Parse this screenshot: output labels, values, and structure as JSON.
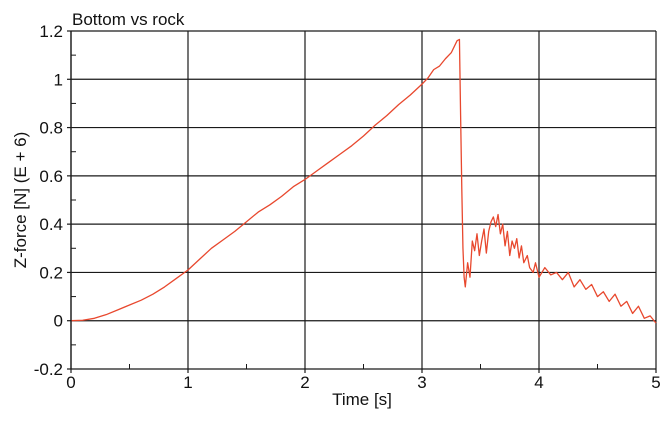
{
  "chart_data": {
    "type": "line",
    "title": "Bottom vs rock",
    "xlabel": "Time [s]",
    "ylabel": "Z-force [N] (E + 6)",
    "xlim": [
      0,
      5
    ],
    "ylim": [
      -0.2,
      1.2
    ],
    "grid": true,
    "x_major_ticks": [
      0,
      1,
      2,
      3,
      4,
      5
    ],
    "x_tick_labels": [
      "0",
      "1",
      "2",
      "3",
      "4",
      "5"
    ],
    "y_major_ticks": [
      -0.2,
      0,
      0.2,
      0.4,
      0.6,
      0.8,
      1,
      1.2
    ],
    "y_tick_labels": [
      "-0.2",
      "0",
      "0.2",
      "0.4",
      "0.6",
      "0.8",
      "1",
      "1.2"
    ],
    "colors": {
      "series": "#e8482e",
      "grid": "#1a1a1a",
      "axis": "#1a1a1a"
    },
    "series": [
      {
        "points": [
          [
            0.0,
            0.0
          ],
          [
            0.1,
            0.002
          ],
          [
            0.2,
            0.01
          ],
          [
            0.3,
            0.025
          ],
          [
            0.4,
            0.045
          ],
          [
            0.5,
            0.065
          ],
          [
            0.6,
            0.085
          ],
          [
            0.7,
            0.11
          ],
          [
            0.8,
            0.14
          ],
          [
            0.9,
            0.175
          ],
          [
            1.0,
            0.21
          ],
          [
            1.1,
            0.255
          ],
          [
            1.2,
            0.3
          ],
          [
            1.3,
            0.335
          ],
          [
            1.4,
            0.37
          ],
          [
            1.5,
            0.41
          ],
          [
            1.6,
            0.45
          ],
          [
            1.7,
            0.48
          ],
          [
            1.8,
            0.515
          ],
          [
            1.9,
            0.555
          ],
          [
            2.0,
            0.585
          ],
          [
            2.1,
            0.62
          ],
          [
            2.2,
            0.655
          ],
          [
            2.3,
            0.69
          ],
          [
            2.4,
            0.725
          ],
          [
            2.5,
            0.765
          ],
          [
            2.6,
            0.81
          ],
          [
            2.7,
            0.85
          ],
          [
            2.8,
            0.895
          ],
          [
            2.9,
            0.935
          ],
          [
            3.0,
            0.98
          ],
          [
            3.05,
            1.005
          ],
          [
            3.1,
            1.04
          ],
          [
            3.15,
            1.055
          ],
          [
            3.2,
            1.085
          ],
          [
            3.25,
            1.11
          ],
          [
            3.3,
            1.16
          ],
          [
            3.32,
            1.165
          ],
          [
            3.33,
            0.85
          ],
          [
            3.34,
            0.55
          ],
          [
            3.35,
            0.3
          ],
          [
            3.36,
            0.18
          ],
          [
            3.37,
            0.14
          ],
          [
            3.39,
            0.24
          ],
          [
            3.41,
            0.18
          ],
          [
            3.43,
            0.33
          ],
          [
            3.45,
            0.29
          ],
          [
            3.47,
            0.36
          ],
          [
            3.49,
            0.27
          ],
          [
            3.51,
            0.33
          ],
          [
            3.53,
            0.38
          ],
          [
            3.55,
            0.28
          ],
          [
            3.57,
            0.37
          ],
          [
            3.59,
            0.41
          ],
          [
            3.61,
            0.43
          ],
          [
            3.63,
            0.39
          ],
          [
            3.65,
            0.44
          ],
          [
            3.67,
            0.36
          ],
          [
            3.69,
            0.4
          ],
          [
            3.71,
            0.31
          ],
          [
            3.73,
            0.37
          ],
          [
            3.75,
            0.27
          ],
          [
            3.77,
            0.33
          ],
          [
            3.79,
            0.3
          ],
          [
            3.81,
            0.34
          ],
          [
            3.83,
            0.26
          ],
          [
            3.85,
            0.31
          ],
          [
            3.87,
            0.24
          ],
          [
            3.9,
            0.27
          ],
          [
            3.92,
            0.22
          ],
          [
            3.95,
            0.2
          ],
          [
            3.97,
            0.24
          ],
          [
            4.0,
            0.18
          ],
          [
            4.05,
            0.22
          ],
          [
            4.1,
            0.19
          ],
          [
            4.15,
            0.2
          ],
          [
            4.2,
            0.17
          ],
          [
            4.25,
            0.2
          ],
          [
            4.3,
            0.14
          ],
          [
            4.35,
            0.17
          ],
          [
            4.4,
            0.13
          ],
          [
            4.45,
            0.15
          ],
          [
            4.5,
            0.1
          ],
          [
            4.55,
            0.12
          ],
          [
            4.6,
            0.08
          ],
          [
            4.65,
            0.11
          ],
          [
            4.7,
            0.06
          ],
          [
            4.75,
            0.08
          ],
          [
            4.8,
            0.03
          ],
          [
            4.85,
            0.06
          ],
          [
            4.9,
            0.01
          ],
          [
            4.95,
            0.02
          ],
          [
            5.0,
            -0.01
          ]
        ]
      }
    ]
  }
}
